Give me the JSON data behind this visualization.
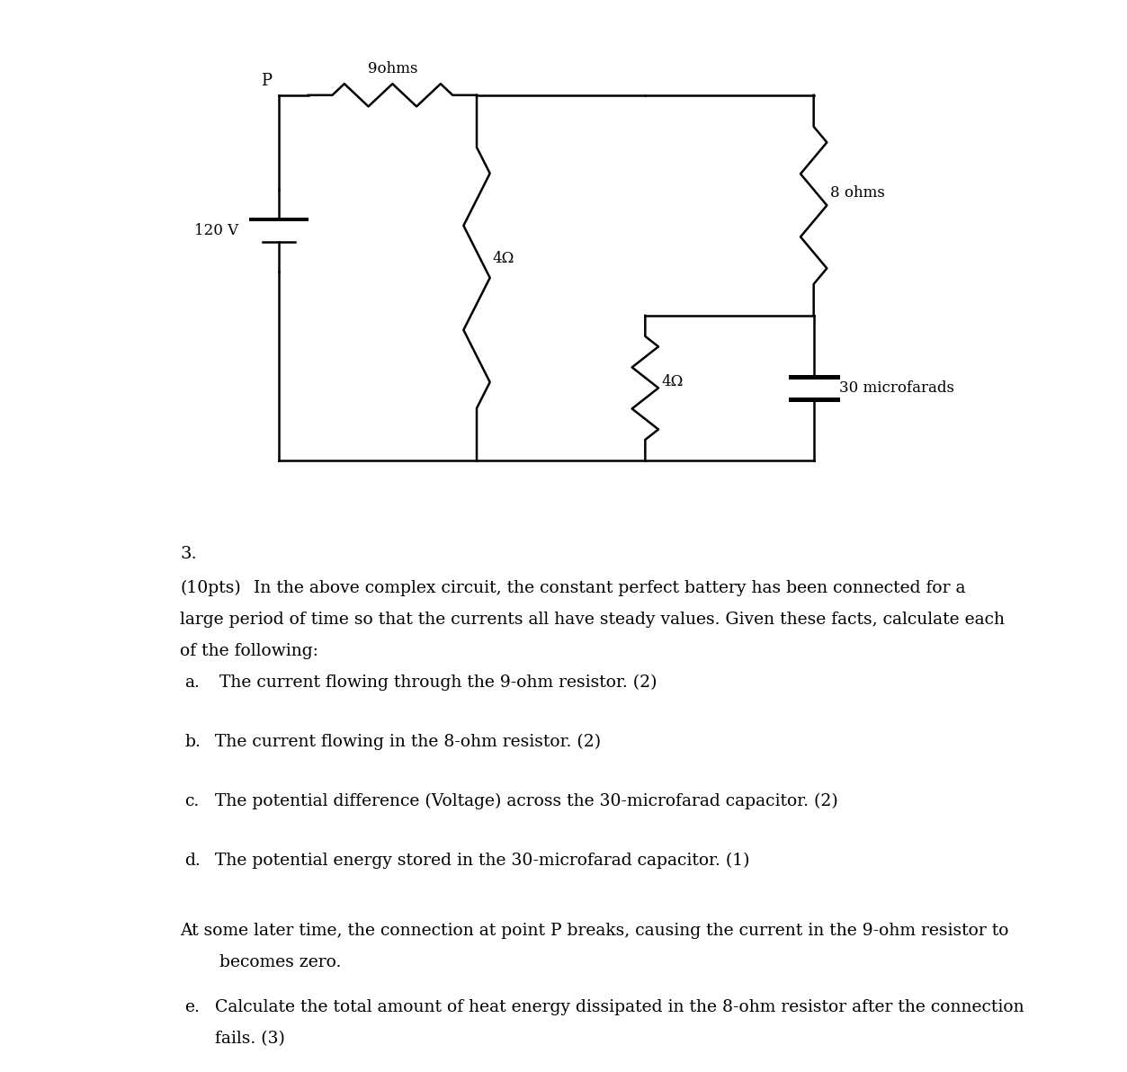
{
  "bg_color": "#ffffff",
  "circuit": {
    "battery_voltage": "120 V",
    "resistors": [
      "9ohms",
      "4Ω",
      "8 ohms",
      "4Ω"
    ],
    "capacitor": "30 microfarads",
    "point_P": "P"
  },
  "title_number": "3.",
  "parts": [
    {
      "label": "a.",
      "text": "The current flowing through the 9-ohm resistor. (2)"
    },
    {
      "label": "b.",
      "text": "The current flowing in the 8-ohm resistor. (2)"
    },
    {
      "label": "c.",
      "text": "The potential difference (Voltage) across the 30-microfarad capacitor. (2)"
    },
    {
      "label": "d.",
      "text": "The potential energy stored in the 30-microfarad capacitor. (1)"
    }
  ],
  "later_line1": "At some later time, the connection at point P breaks, causing the current in the 9-ohm resistor to",
  "later_line2": "becomes zero.",
  "part_e_text1": "Calculate the total amount of heat energy dissipated in the 8-ohm resistor after the connection",
  "part_e_text2": "fails. (3)",
  "font_family": "serif",
  "font_size_body": 13.5,
  "font_size_title": 14
}
